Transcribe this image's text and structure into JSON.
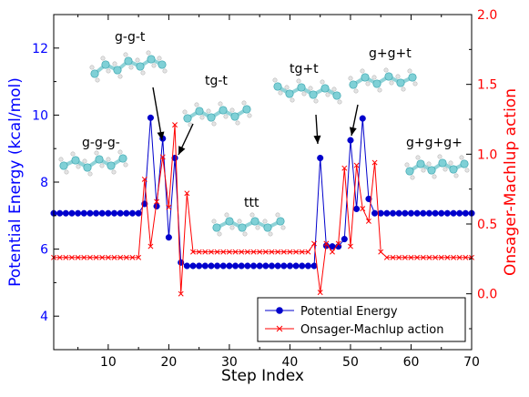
{
  "chart_data": {
    "type": "line",
    "xlabel": "Step Index",
    "ylabel_left": "Potential Energy (kcal/mol)",
    "ylabel_right": "Onsager-Machlup action",
    "xlim": [
      1,
      70
    ],
    "ylim_left": [
      3,
      13
    ],
    "ylim_right": [
      -0.4,
      2.0
    ],
    "x_ticks": [
      "10",
      "20",
      "30",
      "40",
      "50",
      "60",
      "70"
    ],
    "y_left_ticks": [
      "4",
      "6",
      "8",
      "10",
      "12"
    ],
    "y_right_ticks": [
      "0.0",
      "0.5",
      "1.0",
      "1.5",
      "2.0"
    ],
    "colors": {
      "left_axis": "#0000ff",
      "right_axis": "#ff0000",
      "energy": "#0000cc",
      "action": "#ff0000"
    },
    "legend_position": "lower-right",
    "series": [
      {
        "name": "Potential Energy",
        "axis": "left",
        "marker": "circle",
        "x": [
          1,
          2,
          3,
          4,
          5,
          6,
          7,
          8,
          9,
          10,
          11,
          12,
          13,
          14,
          15,
          16,
          17,
          18,
          19,
          20,
          21,
          22,
          23,
          24,
          25,
          26,
          27,
          28,
          29,
          30,
          31,
          32,
          33,
          34,
          35,
          36,
          37,
          38,
          39,
          40,
          41,
          42,
          43,
          44,
          45,
          46,
          47,
          48,
          49,
          50,
          51,
          52,
          53,
          54,
          55,
          56,
          57,
          58,
          59,
          60,
          61,
          62,
          63,
          64,
          65,
          66,
          67,
          68,
          69,
          70
        ],
        "values": [
          7.07,
          7.07,
          7.07,
          7.07,
          7.07,
          7.07,
          7.07,
          7.07,
          7.07,
          7.07,
          7.07,
          7.07,
          7.07,
          7.07,
          7.07,
          7.35,
          9.92,
          7.28,
          9.3,
          6.35,
          8.72,
          5.6,
          5.5,
          5.5,
          5.5,
          5.5,
          5.5,
          5.5,
          5.5,
          5.5,
          5.5,
          5.5,
          5.5,
          5.5,
          5.5,
          5.5,
          5.5,
          5.5,
          5.5,
          5.5,
          5.5,
          5.5,
          5.5,
          5.5,
          8.72,
          6.1,
          6.08,
          6.08,
          6.3,
          9.25,
          7.2,
          9.9,
          7.5,
          7.07,
          7.07,
          7.07,
          7.07,
          7.07,
          7.07,
          7.07,
          7.07,
          7.07,
          7.07,
          7.07,
          7.07,
          7.07,
          7.07,
          7.07,
          7.07,
          7.07
        ]
      },
      {
        "name": "Onsager-Machlup action",
        "axis": "right",
        "marker": "x",
        "x": [
          1,
          2,
          3,
          4,
          5,
          6,
          7,
          8,
          9,
          10,
          11,
          12,
          13,
          14,
          15,
          16,
          17,
          18,
          19,
          20,
          21,
          22,
          23,
          24,
          25,
          26,
          27,
          28,
          29,
          30,
          31,
          32,
          33,
          34,
          35,
          36,
          37,
          38,
          39,
          40,
          41,
          42,
          43,
          44,
          45,
          46,
          47,
          48,
          49,
          50,
          51,
          52,
          53,
          54,
          55,
          56,
          57,
          58,
          59,
          60,
          61,
          62,
          63,
          64,
          65,
          66,
          67,
          68,
          69,
          70
        ],
        "values": [
          0.26,
          0.26,
          0.26,
          0.26,
          0.26,
          0.26,
          0.26,
          0.26,
          0.26,
          0.26,
          0.26,
          0.26,
          0.26,
          0.26,
          0.26,
          0.82,
          0.34,
          0.66,
          0.98,
          0.62,
          1.21,
          0.0,
          0.72,
          0.3,
          0.3,
          0.3,
          0.3,
          0.3,
          0.3,
          0.3,
          0.3,
          0.3,
          0.3,
          0.3,
          0.3,
          0.3,
          0.3,
          0.3,
          0.3,
          0.3,
          0.3,
          0.3,
          0.3,
          0.36,
          0.01,
          0.36,
          0.3,
          0.36,
          0.9,
          0.34,
          0.92,
          0.61,
          0.52,
          0.94,
          0.3,
          0.26,
          0.26,
          0.26,
          0.26,
          0.26,
          0.26,
          0.26,
          0.26,
          0.26,
          0.26,
          0.26,
          0.26,
          0.26,
          0.26,
          0.26
        ]
      }
    ],
    "annotations": [
      {
        "label": "g-g-g-"
      },
      {
        "label": "g-g-t"
      },
      {
        "label": "tg-t"
      },
      {
        "label": "ttt"
      },
      {
        "label": "tg+t"
      },
      {
        "label": "g+g+t"
      },
      {
        "label": "g+g+g+"
      }
    ]
  }
}
